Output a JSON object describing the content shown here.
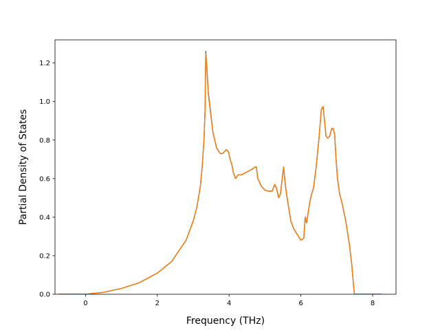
{
  "chart_data": {
    "type": "line",
    "title": "",
    "xlabel": "Frequency (THz)",
    "ylabel": "Partial Density of States",
    "xlim": [
      -0.85,
      8.65
    ],
    "ylim": [
      0.0,
      1.32
    ],
    "xticks": [
      0,
      2,
      4,
      6,
      8
    ],
    "xtick_labels": [
      "0",
      "2",
      "4",
      "6",
      "8"
    ],
    "yticks": [
      0.0,
      0.2,
      0.4,
      0.6,
      0.8,
      1.0,
      1.2
    ],
    "ytick_labels": [
      "0.0",
      "0.2",
      "0.4",
      "0.6",
      "0.8",
      "1.0",
      "1.2"
    ],
    "grid": false,
    "legend": "none",
    "series": [
      {
        "color": "#1f77b4",
        "x": [
          -0.75,
          0.0,
          0.5,
          1.0,
          1.5,
          2.0,
          2.4,
          2.8,
          3.0,
          3.1,
          3.2,
          3.25,
          3.3,
          3.33,
          3.35,
          3.38,
          3.42,
          3.47,
          3.55,
          3.65,
          3.75,
          3.82,
          3.87,
          3.92,
          3.98,
          4.03,
          4.08,
          4.12,
          4.18,
          4.25,
          4.35,
          4.45,
          4.55,
          4.65,
          4.72,
          4.76,
          4.8,
          4.9,
          5.0,
          5.1,
          5.2,
          5.27,
          5.32,
          5.38,
          5.43,
          5.48,
          5.52,
          5.56,
          5.6,
          5.66,
          5.72,
          5.8,
          5.9,
          6.0,
          6.08,
          6.12,
          6.16,
          6.2,
          6.25,
          6.3,
          6.35,
          6.42,
          6.5,
          6.57,
          6.62,
          6.66,
          6.7,
          6.75,
          6.8,
          6.86,
          6.9,
          6.94,
          6.98,
          7.02,
          7.08,
          7.15,
          7.25,
          7.35,
          7.42,
          7.46,
          7.49,
          7.52,
          7.6,
          8.0,
          8.25
        ],
        "y": [
          0.0,
          0.0,
          0.01,
          0.03,
          0.06,
          0.11,
          0.17,
          0.28,
          0.38,
          0.45,
          0.56,
          0.66,
          0.8,
          0.95,
          1.26,
          1.18,
          1.05,
          0.97,
          0.84,
          0.76,
          0.73,
          0.73,
          0.74,
          0.75,
          0.74,
          0.7,
          0.67,
          0.63,
          0.6,
          0.62,
          0.62,
          0.63,
          0.64,
          0.65,
          0.66,
          0.66,
          0.6,
          0.56,
          0.54,
          0.535,
          0.535,
          0.57,
          0.55,
          0.5,
          0.52,
          0.6,
          0.66,
          0.58,
          0.52,
          0.45,
          0.38,
          0.34,
          0.31,
          0.28,
          0.29,
          0.4,
          0.37,
          0.42,
          0.48,
          0.52,
          0.55,
          0.65,
          0.8,
          0.96,
          0.97,
          0.9,
          0.82,
          0.81,
          0.82,
          0.86,
          0.86,
          0.83,
          0.7,
          0.6,
          0.52,
          0.47,
          0.38,
          0.26,
          0.15,
          0.06,
          0.0,
          0.0,
          0.0,
          0.0,
          0.0
        ]
      },
      {
        "color": "#ff7f0e",
        "x": [
          -0.75,
          0.0,
          0.5,
          1.0,
          1.5,
          2.0,
          2.4,
          2.8,
          3.0,
          3.1,
          3.2,
          3.25,
          3.3,
          3.33,
          3.35,
          3.38,
          3.42,
          3.47,
          3.55,
          3.65,
          3.75,
          3.82,
          3.87,
          3.92,
          3.98,
          4.03,
          4.08,
          4.12,
          4.18,
          4.25,
          4.35,
          4.45,
          4.55,
          4.65,
          4.72,
          4.76,
          4.8,
          4.9,
          5.0,
          5.1,
          5.2,
          5.27,
          5.32,
          5.38,
          5.43,
          5.48,
          5.52,
          5.56,
          5.6,
          5.66,
          5.72,
          5.8,
          5.9,
          6.0,
          6.08,
          6.12,
          6.16,
          6.2,
          6.25,
          6.3,
          6.35,
          6.42,
          6.5,
          6.57,
          6.62,
          6.66,
          6.7,
          6.75,
          6.8,
          6.86,
          6.9,
          6.94,
          6.98,
          7.02,
          7.08,
          7.15,
          7.25,
          7.35,
          7.42,
          7.46,
          7.49,
          7.52,
          7.6,
          8.0,
          8.25
        ],
        "y": [
          0.0,
          0.0,
          0.01,
          0.03,
          0.06,
          0.11,
          0.17,
          0.28,
          0.38,
          0.45,
          0.56,
          0.66,
          0.8,
          0.95,
          1.25,
          1.17,
          1.04,
          0.96,
          0.84,
          0.76,
          0.73,
          0.73,
          0.74,
          0.75,
          0.74,
          0.7,
          0.67,
          0.63,
          0.6,
          0.62,
          0.62,
          0.63,
          0.64,
          0.65,
          0.66,
          0.66,
          0.6,
          0.56,
          0.54,
          0.535,
          0.535,
          0.57,
          0.55,
          0.5,
          0.52,
          0.6,
          0.66,
          0.58,
          0.52,
          0.45,
          0.38,
          0.34,
          0.31,
          0.28,
          0.29,
          0.4,
          0.37,
          0.42,
          0.48,
          0.52,
          0.55,
          0.65,
          0.8,
          0.96,
          0.975,
          0.9,
          0.82,
          0.81,
          0.82,
          0.86,
          0.86,
          0.83,
          0.7,
          0.6,
          0.52,
          0.47,
          0.38,
          0.26,
          0.15,
          0.06,
          0.0,
          0.0,
          0.0,
          0.0,
          0.0
        ]
      }
    ]
  }
}
